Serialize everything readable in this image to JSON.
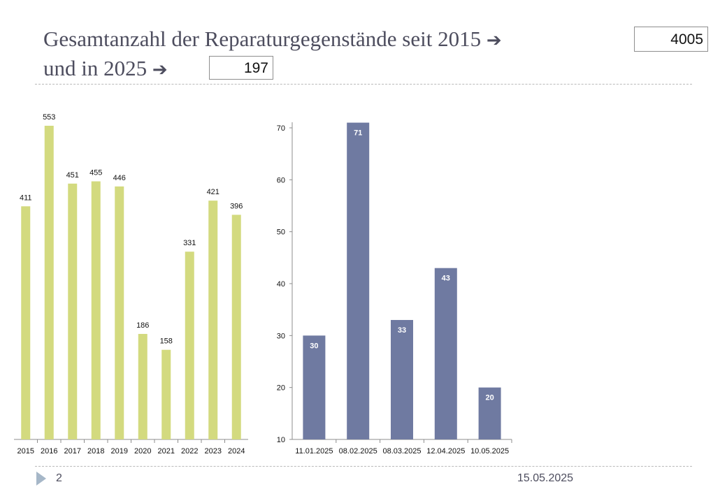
{
  "slide": {
    "title_line1": "Gesamtanzahl der Reparaturgegenstände seit 2015",
    "title_line2": "und in 2025",
    "arrow_glyph": "➔",
    "total_since_2015": "4005",
    "total_2025": "197",
    "page_number": "2",
    "date": "15.05.2025"
  },
  "colors": {
    "yearly_bar": "#d3da7f",
    "monthly_bar": "#6f7aa1",
    "text": "#4d4d5e"
  },
  "chart_data": [
    {
      "type": "bar",
      "categories": [
        "2015",
        "2016",
        "2017",
        "2018",
        "2019",
        "2020",
        "2021",
        "2022",
        "2023",
        "2024"
      ],
      "values": [
        411,
        553,
        451,
        455,
        446,
        186,
        158,
        331,
        421,
        396
      ],
      "ylim": [
        0,
        553
      ],
      "yaxis_visible": false,
      "data_labels": "above",
      "grid": false
    },
    {
      "type": "bar",
      "categories": [
        "11.01.2025",
        "08.02.2025",
        "08.03.2025",
        "12.04.2025",
        "10.05.2025"
      ],
      "values": [
        30,
        71,
        33,
        43,
        20
      ],
      "ylim": [
        10,
        70
      ],
      "yticks": [
        10,
        20,
        30,
        40,
        50,
        60,
        70
      ],
      "data_labels": "inside-top",
      "grid": false
    }
  ]
}
